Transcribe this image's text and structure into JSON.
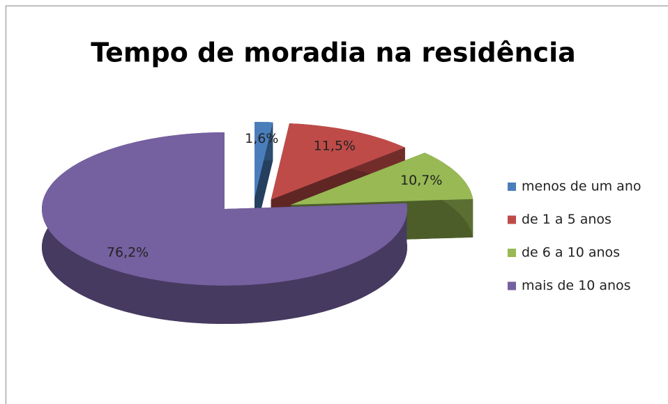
{
  "chart_data": {
    "type": "pie",
    "title": "Tempo de moradia na residência",
    "categories": [
      "menos de um ano",
      "de 1 a 5 anos",
      "de 6 a 10 anos",
      "mais de 10 anos"
    ],
    "values": [
      1.6,
      11.5,
      10.7,
      76.2
    ],
    "value_labels": [
      "1,6%",
      "11,5%",
      "10,7%",
      "76,2%"
    ],
    "colors": [
      "#4a7ebb",
      "#be4b48",
      "#98b954",
      "#7560a0"
    ],
    "legend": "right"
  }
}
